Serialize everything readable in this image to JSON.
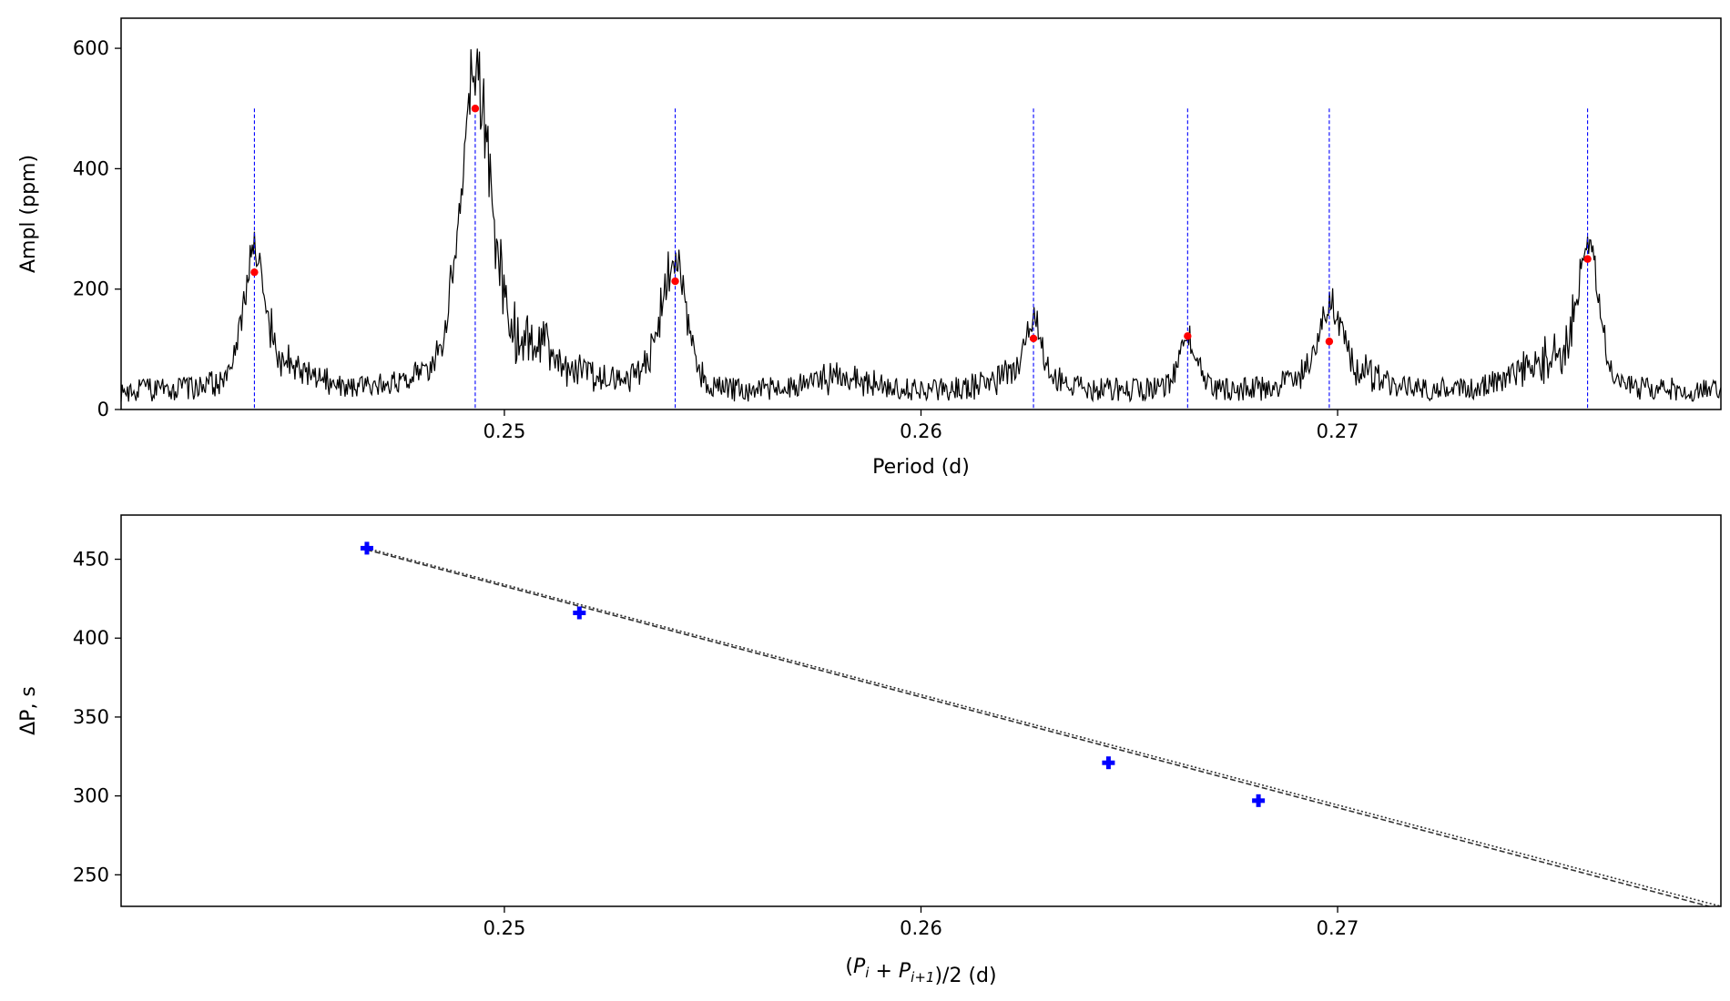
{
  "chart_data": [
    {
      "type": "line",
      "xlabel": "Period (d)",
      "ylabel": "Ampl (ppm)",
      "xlim": [
        0.2408,
        0.2792
      ],
      "ylim": [
        0,
        650
      ],
      "x_ticks": [
        0.25,
        0.26,
        0.27
      ],
      "y_ticks": [
        0,
        200,
        400,
        600
      ],
      "x_tick_labels": [
        "0.25",
        "0.26",
        "0.27"
      ],
      "y_tick_labels": [
        "0",
        "200",
        "400",
        "600"
      ],
      "grid": false,
      "colors": {
        "spectrum": "#000000",
        "marker": "#ff0000",
        "vline": "#0000ff"
      },
      "vline_top": 500,
      "peaks": {
        "x": [
          0.244,
          0.2493,
          0.2541,
          0.2627,
          0.2664,
          0.2698,
          0.276
        ],
        "y": [
          228,
          500,
          213,
          118,
          122,
          113,
          250
        ]
      },
      "peak_widths": [
        0.00035,
        0.0005,
        0.0004,
        0.00025,
        0.0003,
        0.0004,
        0.00035
      ],
      "bumps": [
        {
          "x": 0.25,
          "h": 95,
          "w": 0.0018
        },
        {
          "x": 0.2445,
          "h": 45,
          "w": 0.0012
        },
        {
          "x": 0.2538,
          "h": 45,
          "w": 0.0008
        },
        {
          "x": 0.27,
          "h": 45,
          "w": 0.001
        },
        {
          "x": 0.2752,
          "h": 55,
          "w": 0.0012
        },
        {
          "x": 0.2625,
          "h": 30,
          "w": 0.001
        },
        {
          "x": 0.258,
          "h": 20,
          "w": 0.001
        }
      ],
      "baseline": 25,
      "noise": 20
    },
    {
      "type": "scatter",
      "xlabel": "(P_i + P_{i+1})/2 (d)",
      "ylabel": "ΔP, s",
      "xlim": [
        0.2408,
        0.2792
      ],
      "ylim": [
        230,
        478
      ],
      "x_ticks": [
        0.25,
        0.26,
        0.27
      ],
      "y_ticks": [
        250,
        300,
        350,
        400,
        450
      ],
      "x_tick_labels": [
        "0.25",
        "0.26",
        "0.27"
      ],
      "y_tick_labels": [
        "250",
        "300",
        "350",
        "400",
        "450"
      ],
      "grid": false,
      "colors": {
        "points": "#0000ff",
        "fit": "#333333"
      },
      "x": [
        0.2467,
        0.2518,
        0.2645,
        0.2681
      ],
      "y": [
        457,
        416,
        321,
        297
      ],
      "fit_lines": [
        {
          "x": [
            0.2467,
            0.2792
          ],
          "y": [
            456,
            228
          ],
          "style": "dashed"
        },
        {
          "x": [
            0.2467,
            0.2792
          ],
          "y": [
            457,
            230
          ],
          "style": "dotted"
        }
      ]
    }
  ]
}
